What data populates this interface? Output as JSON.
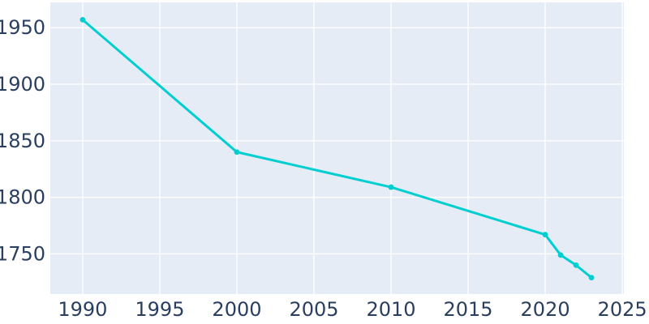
{
  "figure": {
    "colors": {
      "page_bg": "#ffffff",
      "plot_bg": "#e5ecf6",
      "grid": "#ffffff",
      "line": "#00ced1",
      "marker": "#00ced1",
      "tick_text": "#2a3f5f"
    }
  },
  "chart_data": {
    "type": "line",
    "title": "",
    "xlabel": "",
    "ylabel": "",
    "x": [
      1990,
      2000,
      2010,
      2020,
      2021,
      2022,
      2023
    ],
    "y": [
      1957,
      1840,
      1809,
      1767,
      1749,
      1740,
      1729
    ],
    "x_tick_values": [
      1990,
      1995,
      2000,
      2005,
      2010,
      2015,
      2020,
      2025
    ],
    "x_tick_labels": [
      "1990",
      "1995",
      "2000",
      "2005",
      "2010",
      "2015",
      "2020",
      "2025"
    ],
    "y_tick_values": [
      1750,
      1800,
      1850,
      1900,
      1950
    ],
    "y_tick_labels": [
      "1750",
      "1800",
      "1850",
      "1900",
      "1950"
    ],
    "xlim": [
      1987.9,
      2025.1
    ],
    "ylim": [
      1714.5,
      1972.3
    ],
    "grid": true,
    "legend_visible": false,
    "markers": true,
    "line_width": 3
  }
}
